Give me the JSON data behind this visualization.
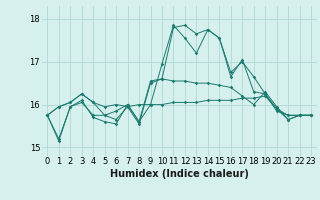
{
  "xlabel": "Humidex (Indice chaleur)",
  "ylabel": "",
  "background_color": "#d6f0ee",
  "grid_color": "#b0d8d4",
  "line_color": "#1a7a6e",
  "xlim": [
    -0.5,
    23.5
  ],
  "ylim": [
    14.8,
    18.3
  ],
  "yticks": [
    15,
    16,
    17,
    18
  ],
  "xticks": [
    0,
    1,
    2,
    3,
    4,
    5,
    6,
    7,
    8,
    9,
    10,
    11,
    12,
    13,
    14,
    15,
    16,
    17,
    18,
    19,
    20,
    21,
    22,
    23
  ],
  "series": [
    [
      15.75,
      15.15,
      15.95,
      16.05,
      15.75,
      15.75,
      15.85,
      16.0,
      15.6,
      16.55,
      16.6,
      17.8,
      17.85,
      17.65,
      17.75,
      17.55,
      16.75,
      17.0,
      16.65,
      16.25,
      15.85,
      15.75,
      15.75,
      15.75
    ],
    [
      15.75,
      15.95,
      16.05,
      16.25,
      16.05,
      15.95,
      16.0,
      15.95,
      16.0,
      16.0,
      16.0,
      16.05,
      16.05,
      16.05,
      16.1,
      16.1,
      16.1,
      16.15,
      16.15,
      16.2,
      15.9,
      15.75,
      15.75,
      15.75
    ],
    [
      15.75,
      15.95,
      16.05,
      16.25,
      16.05,
      15.75,
      15.65,
      15.95,
      15.55,
      16.5,
      16.6,
      16.55,
      16.55,
      16.5,
      16.5,
      16.45,
      16.4,
      16.2,
      16.0,
      16.3,
      15.95,
      15.65,
      15.75,
      15.75
    ],
    [
      15.75,
      15.2,
      15.95,
      16.1,
      15.7,
      15.6,
      15.55,
      16.0,
      15.6,
      16.0,
      16.95,
      17.85,
      17.55,
      17.2,
      17.75,
      17.55,
      16.65,
      17.05,
      16.3,
      16.25,
      15.9,
      15.65,
      15.75,
      15.75
    ]
  ],
  "tick_fontsize": 6,
  "xlabel_fontsize": 7
}
